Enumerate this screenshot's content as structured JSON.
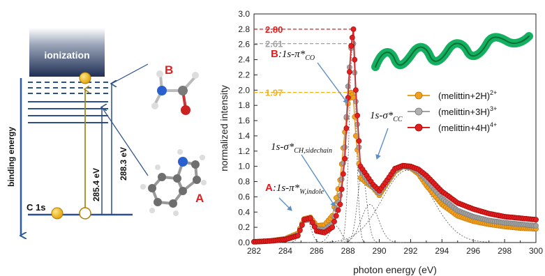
{
  "diagram": {
    "ionization_label": "ionization",
    "binding_energy_label": "binding energy",
    "core_level_label": "C 1s",
    "energy_1": "285.4 eV",
    "energy_2": "288.3 eV",
    "label_a": "A",
    "label_b": "B"
  },
  "chart_data": {
    "type": "line",
    "xlabel": "photon energy (eV)",
    "ylabel": "normalized intensity",
    "xlim": [
      282,
      300
    ],
    "ylim": [
      0,
      3.0
    ],
    "x_ticks": [
      282,
      284,
      286,
      288,
      290,
      292,
      294,
      296,
      298,
      300
    ],
    "y_ticks": [
      0.0,
      0.2,
      0.4,
      0.6,
      0.8,
      1.0,
      1.2,
      1.4,
      1.6,
      1.8,
      2.0,
      2.2,
      2.4,
      2.6,
      2.8,
      3.0
    ],
    "grid": false,
    "legend_position": "right",
    "series": [
      {
        "name": "(melittin+2H)",
        "charge": "2+",
        "color": "#f0a020",
        "peak": 1.97,
        "x": [
          282,
          283,
          284,
          284.8,
          285.2,
          285.6,
          286.0,
          286.5,
          287.0,
          287.5,
          287.8,
          288.0,
          288.2,
          288.35,
          288.5,
          288.8,
          289.2,
          289.6,
          290.0,
          290.5,
          291.0,
          291.5,
          292.0,
          292.5,
          293.0,
          294.0,
          295.0,
          296.0,
          297.0,
          298.0,
          299.0,
          300.0
        ],
        "y": [
          0.01,
          0.02,
          0.05,
          0.12,
          0.31,
          0.33,
          0.22,
          0.23,
          0.35,
          0.82,
          1.45,
          1.82,
          1.97,
          1.9,
          1.4,
          0.85,
          0.78,
          0.72,
          0.62,
          0.78,
          0.93,
          1.0,
          0.98,
          0.9,
          0.75,
          0.5,
          0.35,
          0.28,
          0.24,
          0.21,
          0.19,
          0.18
        ]
      },
      {
        "name": "(melittin+3H)",
        "charge": "3+",
        "color": "#a0a0a0",
        "peak": 2.61,
        "x": [
          282,
          283,
          284,
          284.8,
          285.2,
          285.6,
          286.0,
          286.5,
          287.0,
          287.5,
          287.8,
          288.0,
          288.2,
          288.35,
          288.5,
          288.8,
          289.2,
          289.6,
          290.0,
          290.5,
          291.0,
          291.5,
          292.0,
          292.5,
          293.0,
          294.0,
          295.0,
          296.0,
          297.0,
          298.0,
          299.0,
          300.0
        ],
        "y": [
          0.01,
          0.02,
          0.04,
          0.1,
          0.29,
          0.3,
          0.18,
          0.17,
          0.25,
          0.62,
          1.25,
          2.05,
          2.55,
          2.61,
          1.85,
          0.95,
          0.82,
          0.73,
          0.65,
          0.8,
          0.95,
          1.0,
          0.99,
          0.93,
          0.82,
          0.58,
          0.42,
          0.34,
          0.29,
          0.26,
          0.24,
          0.22
        ]
      },
      {
        "name": "(melittin+4H)",
        "charge": "4+",
        "color": "#e02020",
        "peak": 2.8,
        "x": [
          282,
          283,
          284,
          284.8,
          285.2,
          285.6,
          286.0,
          286.5,
          287.0,
          287.5,
          287.8,
          288.0,
          288.2,
          288.35,
          288.5,
          288.8,
          289.2,
          289.6,
          290.0,
          290.5,
          291.0,
          291.5,
          292.0,
          292.5,
          293.0,
          294.0,
          295.0,
          296.0,
          297.0,
          298.0,
          299.0,
          300.0
        ],
        "y": [
          0.01,
          0.02,
          0.04,
          0.09,
          0.3,
          0.32,
          0.15,
          0.13,
          0.2,
          0.5,
          1.1,
          1.9,
          2.58,
          2.8,
          2.0,
          1.0,
          0.88,
          0.76,
          0.68,
          0.82,
          0.97,
          1.01,
          1.0,
          0.96,
          0.88,
          0.67,
          0.52,
          0.44,
          0.38,
          0.34,
          0.32,
          0.3
        ]
      }
    ],
    "peak_labels": [
      {
        "text": "2.80",
        "value": 2.8,
        "color": "#e02020"
      },
      {
        "text": "2.61",
        "value": 2.61,
        "color": "#a0a0a0"
      },
      {
        "text": "1.97",
        "value": 1.97,
        "color": "#f0b020"
      }
    ],
    "annotations": {
      "b_label": "B",
      "b_text": ":1s-π*",
      "b_sub": "CO",
      "a_label": "A",
      "a_text": ":1s-π*",
      "a_sub": "W,indole",
      "sig_ch": "1s-σ*",
      "sig_ch_sub": "CH,sidechain",
      "sig_cc": "1s-σ*",
      "sig_cc_sub": "CC"
    }
  }
}
